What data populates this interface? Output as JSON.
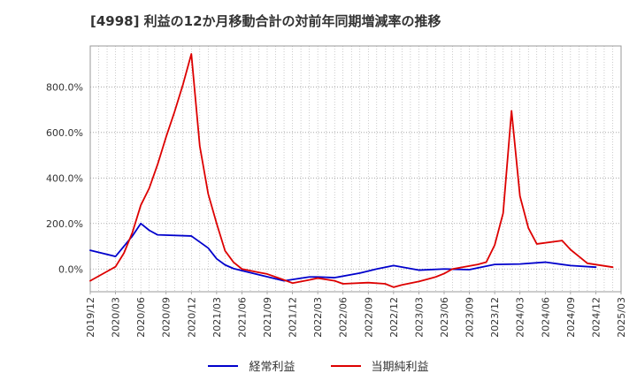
{
  "chart_data": {
    "type": "line",
    "title": "[4998]  利益の12か月移動合計の対前年同期増減率の推移",
    "xlabel": "",
    "ylabel": "",
    "ylim": [
      -100,
      980
    ],
    "yticks": [
      0,
      200,
      400,
      600,
      800
    ],
    "ytick_labels": [
      "0.0%",
      "200.0%",
      "400.0%",
      "600.0%",
      "800.0%"
    ],
    "xtick_labels": [
      "2019/12",
      "2020/03",
      "2020/06",
      "2020/09",
      "2020/12",
      "2021/03",
      "2021/06",
      "2021/09",
      "2021/12",
      "2022/03",
      "2022/06",
      "2022/09",
      "2022/12",
      "2023/03",
      "2023/06",
      "2023/09",
      "2023/12",
      "2024/03",
      "2024/06",
      "2024/09",
      "2024/12",
      "2025/03"
    ],
    "x_range": [
      0,
      63
    ],
    "legend_position": "bottom",
    "series": [
      {
        "name": "経常利益",
        "color": "#0000cc",
        "points": [
          [
            0,
            82
          ],
          [
            3,
            55
          ],
          [
            4,
            100
          ],
          [
            5,
            145
          ],
          [
            6,
            200
          ],
          [
            7,
            170
          ],
          [
            8,
            150
          ],
          [
            12,
            145
          ],
          [
            14,
            92
          ],
          [
            15,
            45
          ],
          [
            16,
            18
          ],
          [
            17,
            2
          ],
          [
            20,
            -25
          ],
          [
            23,
            -52
          ],
          [
            26,
            -35
          ],
          [
            27,
            -35
          ],
          [
            29,
            -38
          ],
          [
            32,
            -18
          ],
          [
            34,
            0
          ],
          [
            36,
            15
          ],
          [
            39,
            -5
          ],
          [
            42,
            0
          ],
          [
            45,
            -3
          ],
          [
            46,
            5
          ],
          [
            48,
            20
          ],
          [
            51,
            22
          ],
          [
            54,
            30
          ],
          [
            57,
            15
          ],
          [
            60,
            8
          ]
        ]
      },
      {
        "name": "当期純利益",
        "color": "#dd0000",
        "points": [
          [
            0,
            -52
          ],
          [
            3,
            10
          ],
          [
            4,
            70
          ],
          [
            5,
            160
          ],
          [
            6,
            280
          ],
          [
            7,
            355
          ],
          [
            8,
            460
          ],
          [
            9,
            580
          ],
          [
            10,
            690
          ],
          [
            11,
            810
          ],
          [
            12,
            945
          ],
          [
            13,
            540
          ],
          [
            14,
            330
          ],
          [
            15,
            200
          ],
          [
            16,
            80
          ],
          [
            17,
            30
          ],
          [
            18,
            0
          ],
          [
            20,
            -15
          ],
          [
            21,
            -22
          ],
          [
            23,
            -48
          ],
          [
            24,
            -62
          ],
          [
            26,
            -48
          ],
          [
            27,
            -40
          ],
          [
            29,
            -52
          ],
          [
            30,
            -65
          ],
          [
            33,
            -60
          ],
          [
            35,
            -65
          ],
          [
            36,
            -80
          ],
          [
            37,
            -70
          ],
          [
            39,
            -55
          ],
          [
            40,
            -45
          ],
          [
            41,
            -35
          ],
          [
            42,
            -20
          ],
          [
            43,
            0
          ],
          [
            46,
            20
          ],
          [
            47,
            30
          ],
          [
            48,
            105
          ],
          [
            49,
            245
          ],
          [
            50,
            695
          ],
          [
            51,
            320
          ],
          [
            52,
            180
          ],
          [
            53,
            110
          ],
          [
            56,
            125
          ],
          [
            57,
            85
          ],
          [
            58,
            55
          ],
          [
            59,
            25
          ],
          [
            62,
            8
          ]
        ]
      }
    ]
  }
}
